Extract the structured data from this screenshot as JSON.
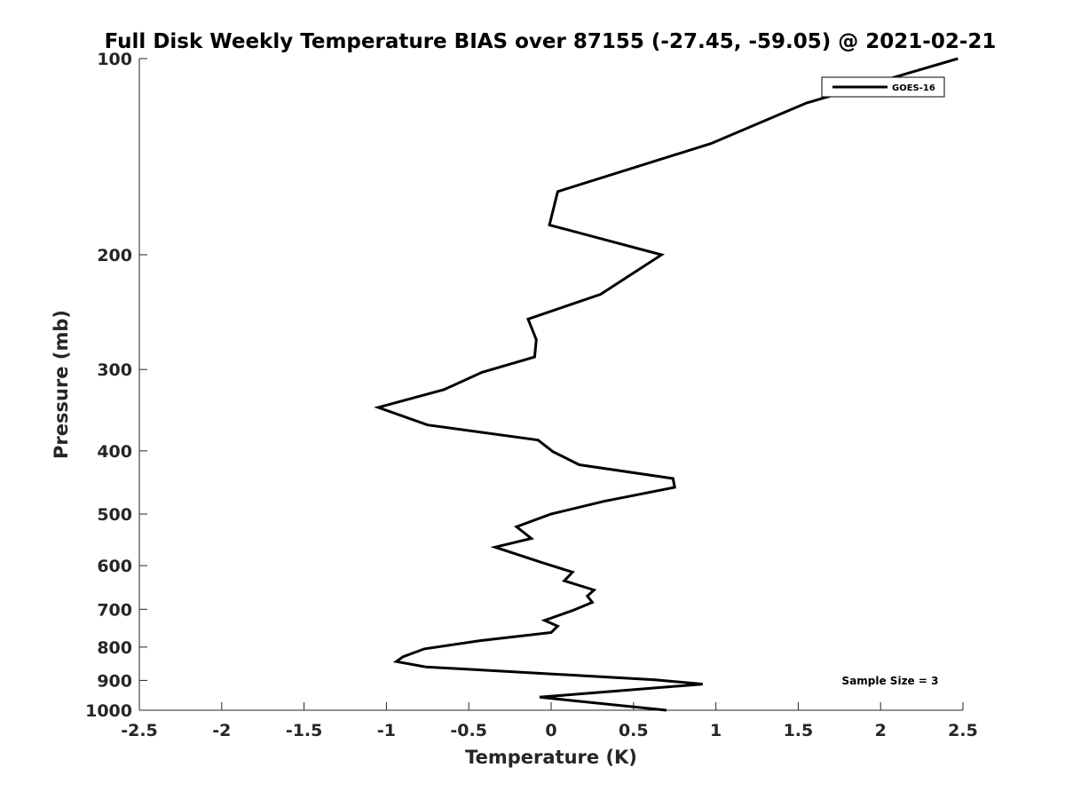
{
  "chart_data": {
    "type": "line",
    "title": "Full Disk Weekly Temperature BIAS over 87155 (-27.45, -59.05) @ 2021-02-21",
    "xlabel": "Temperature (K)",
    "ylabel": "Pressure (mb)",
    "xlim": [
      -2.5,
      2.5
    ],
    "ylim": [
      100,
      1000
    ],
    "y_scale": "log",
    "y_reversed": true,
    "grid": false,
    "legend_position": "top-right",
    "x_ticks": [
      -2.5,
      -2,
      -1.5,
      -1,
      -0.5,
      0,
      0.5,
      1,
      1.5,
      2,
      2.5
    ],
    "x_tick_labels": [
      "-2.5",
      "-2",
      "-1.5",
      "-1",
      "-0.5",
      "0",
      "0.5",
      "1",
      "1.5",
      "2",
      "2.5"
    ],
    "y_ticks": [
      100,
      200,
      300,
      400,
      500,
      600,
      700,
      800,
      900,
      1000
    ],
    "y_tick_labels": [
      "100",
      "200",
      "300",
      "400",
      "500",
      "600",
      "700",
      "800",
      "900",
      "1000"
    ],
    "annotation": "Sample Size = 3",
    "series": [
      {
        "name": "GOES-16",
        "color": "#000000",
        "points": [
          {
            "x": 2.47,
            "p": 100
          },
          {
            "x": 1.55,
            "p": 117
          },
          {
            "x": 0.97,
            "p": 135
          },
          {
            "x": 0.04,
            "p": 160
          },
          {
            "x": -0.01,
            "p": 180
          },
          {
            "x": 0.67,
            "p": 200
          },
          {
            "x": 0.3,
            "p": 230
          },
          {
            "x": -0.14,
            "p": 251
          },
          {
            "x": -0.09,
            "p": 270
          },
          {
            "x": -0.1,
            "p": 287
          },
          {
            "x": -0.42,
            "p": 303
          },
          {
            "x": -0.65,
            "p": 322
          },
          {
            "x": -1.05,
            "p": 343
          },
          {
            "x": -0.75,
            "p": 365
          },
          {
            "x": -0.08,
            "p": 385
          },
          {
            "x": 0.01,
            "p": 401
          },
          {
            "x": 0.17,
            "p": 420
          },
          {
            "x": 0.74,
            "p": 441
          },
          {
            "x": 0.75,
            "p": 455
          },
          {
            "x": 0.32,
            "p": 478
          },
          {
            "x": 0.0,
            "p": 500
          },
          {
            "x": -0.21,
            "p": 523
          },
          {
            "x": -0.12,
            "p": 545
          },
          {
            "x": -0.34,
            "p": 562
          },
          {
            "x": -0.06,
            "p": 593
          },
          {
            "x": 0.13,
            "p": 614
          },
          {
            "x": 0.08,
            "p": 633
          },
          {
            "x": 0.26,
            "p": 654
          },
          {
            "x": 0.22,
            "p": 668
          },
          {
            "x": 0.25,
            "p": 683
          },
          {
            "x": 0.13,
            "p": 703
          },
          {
            "x": -0.04,
            "p": 728
          },
          {
            "x": 0.04,
            "p": 743
          },
          {
            "x": 0.0,
            "p": 760
          },
          {
            "x": -0.43,
            "p": 782
          },
          {
            "x": -0.77,
            "p": 805
          },
          {
            "x": -0.9,
            "p": 828
          },
          {
            "x": -0.94,
            "p": 842
          },
          {
            "x": -0.76,
            "p": 858
          },
          {
            "x": 0.63,
            "p": 898
          },
          {
            "x": 0.92,
            "p": 912
          },
          {
            "x": -0.07,
            "p": 955
          },
          {
            "x": 0.7,
            "p": 1000
          }
        ]
      }
    ]
  }
}
